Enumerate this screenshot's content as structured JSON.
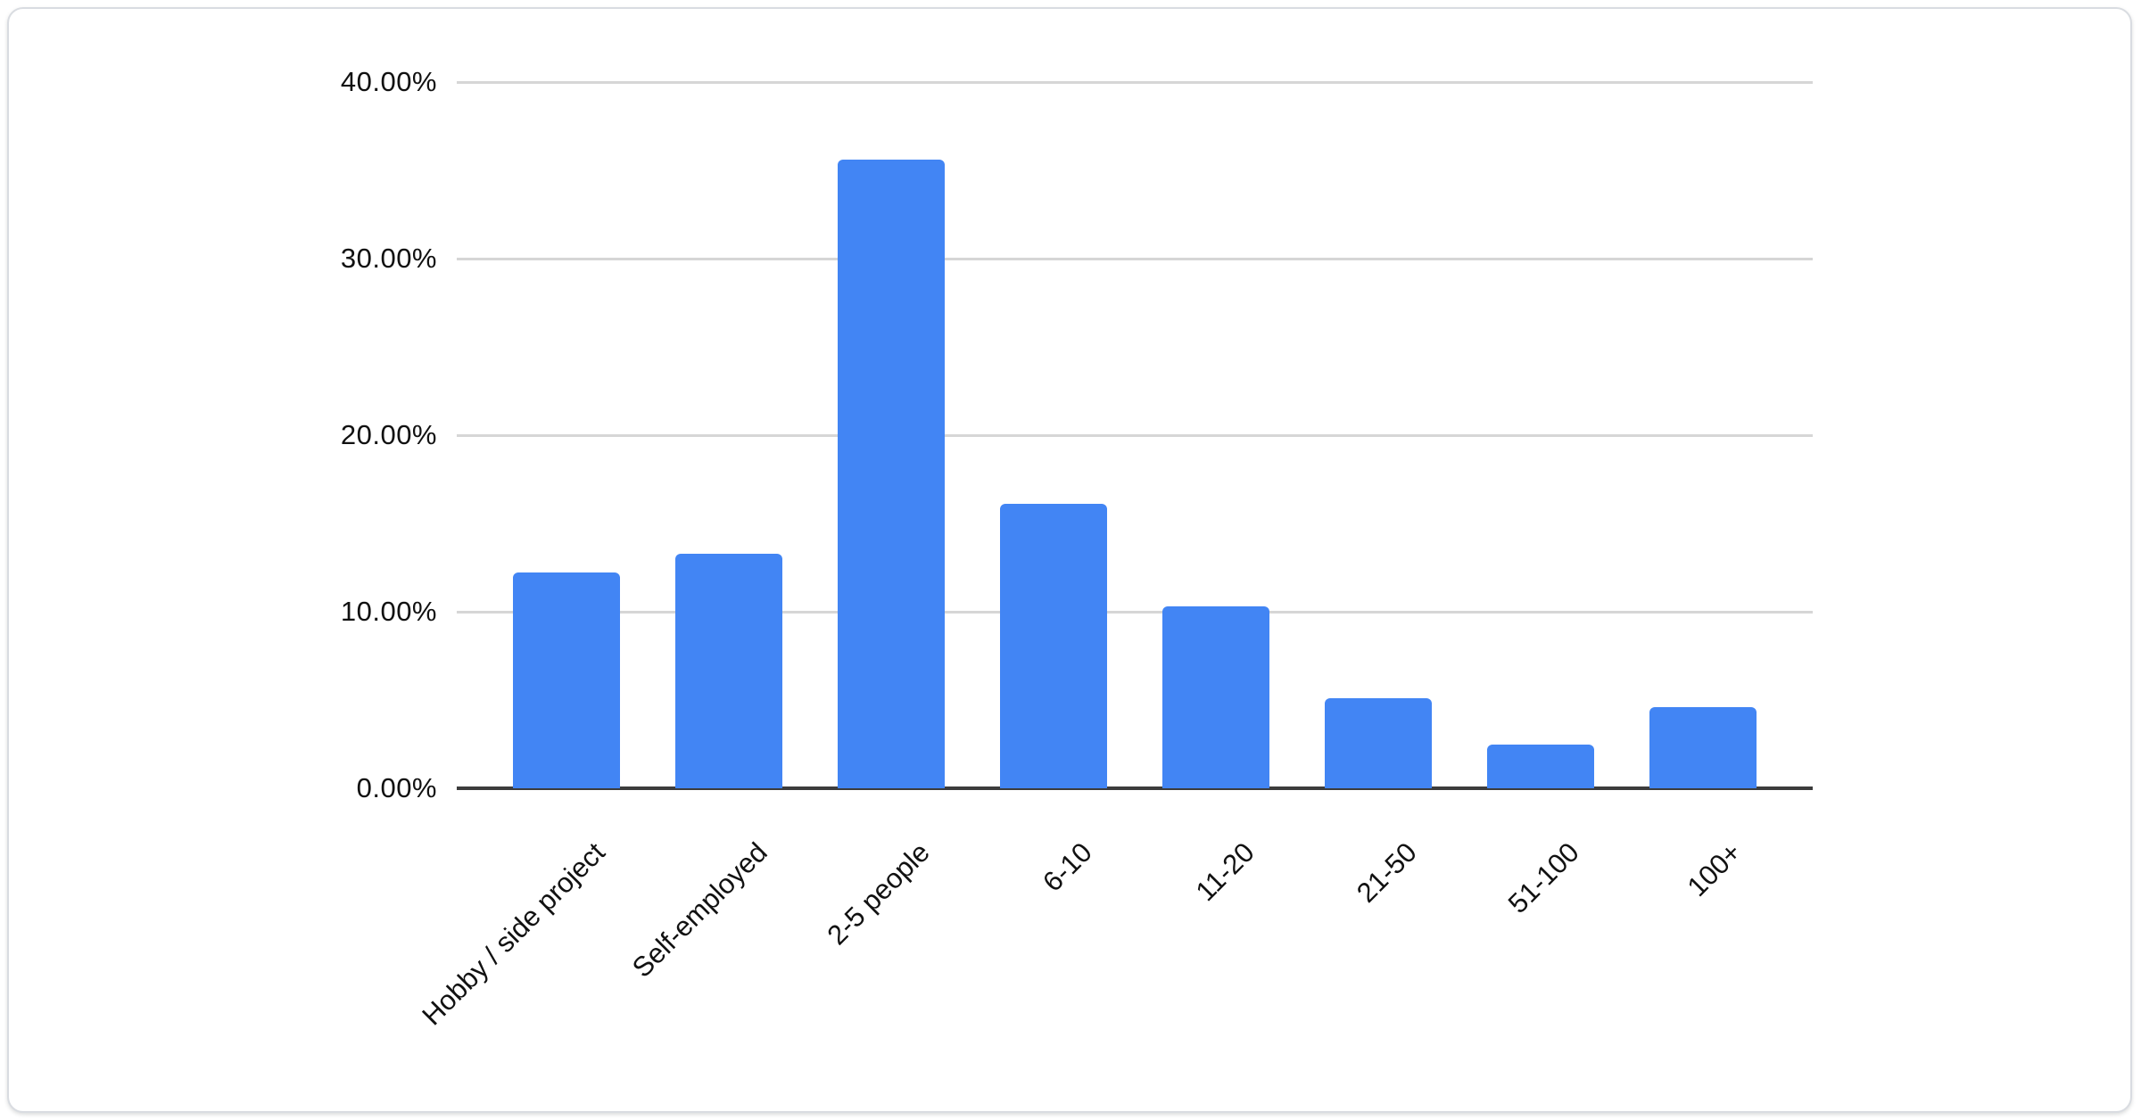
{
  "chart_data": {
    "type": "bar",
    "title": "",
    "xlabel": "",
    "ylabel": "",
    "categories": [
      "Hobby / side project",
      "Self-employed",
      "2-5 people",
      "6-10",
      "11-20",
      "21-50",
      "51-100",
      "100+"
    ],
    "values": [
      12.2,
      13.3,
      35.6,
      16.1,
      10.3,
      5.1,
      2.5,
      4.6
    ],
    "value_unit": "percent",
    "ylim": [
      0,
      40
    ],
    "y_ticks": [
      {
        "value": 40,
        "label": "40.00%"
      },
      {
        "value": 30,
        "label": "30.00%"
      },
      {
        "value": 20,
        "label": "20.00%"
      },
      {
        "value": 10,
        "label": "10.00%"
      },
      {
        "value": 0,
        "label": "0.00%"
      }
    ],
    "grid": true,
    "legend": "none",
    "colors": {
      "bar": "#4285f4",
      "gridline": "#d6d6d6",
      "axis_line": "#3c3c3c",
      "tick_label": "#111111",
      "card_border": "#d9dce1",
      "card_background": "#ffffff"
    }
  }
}
